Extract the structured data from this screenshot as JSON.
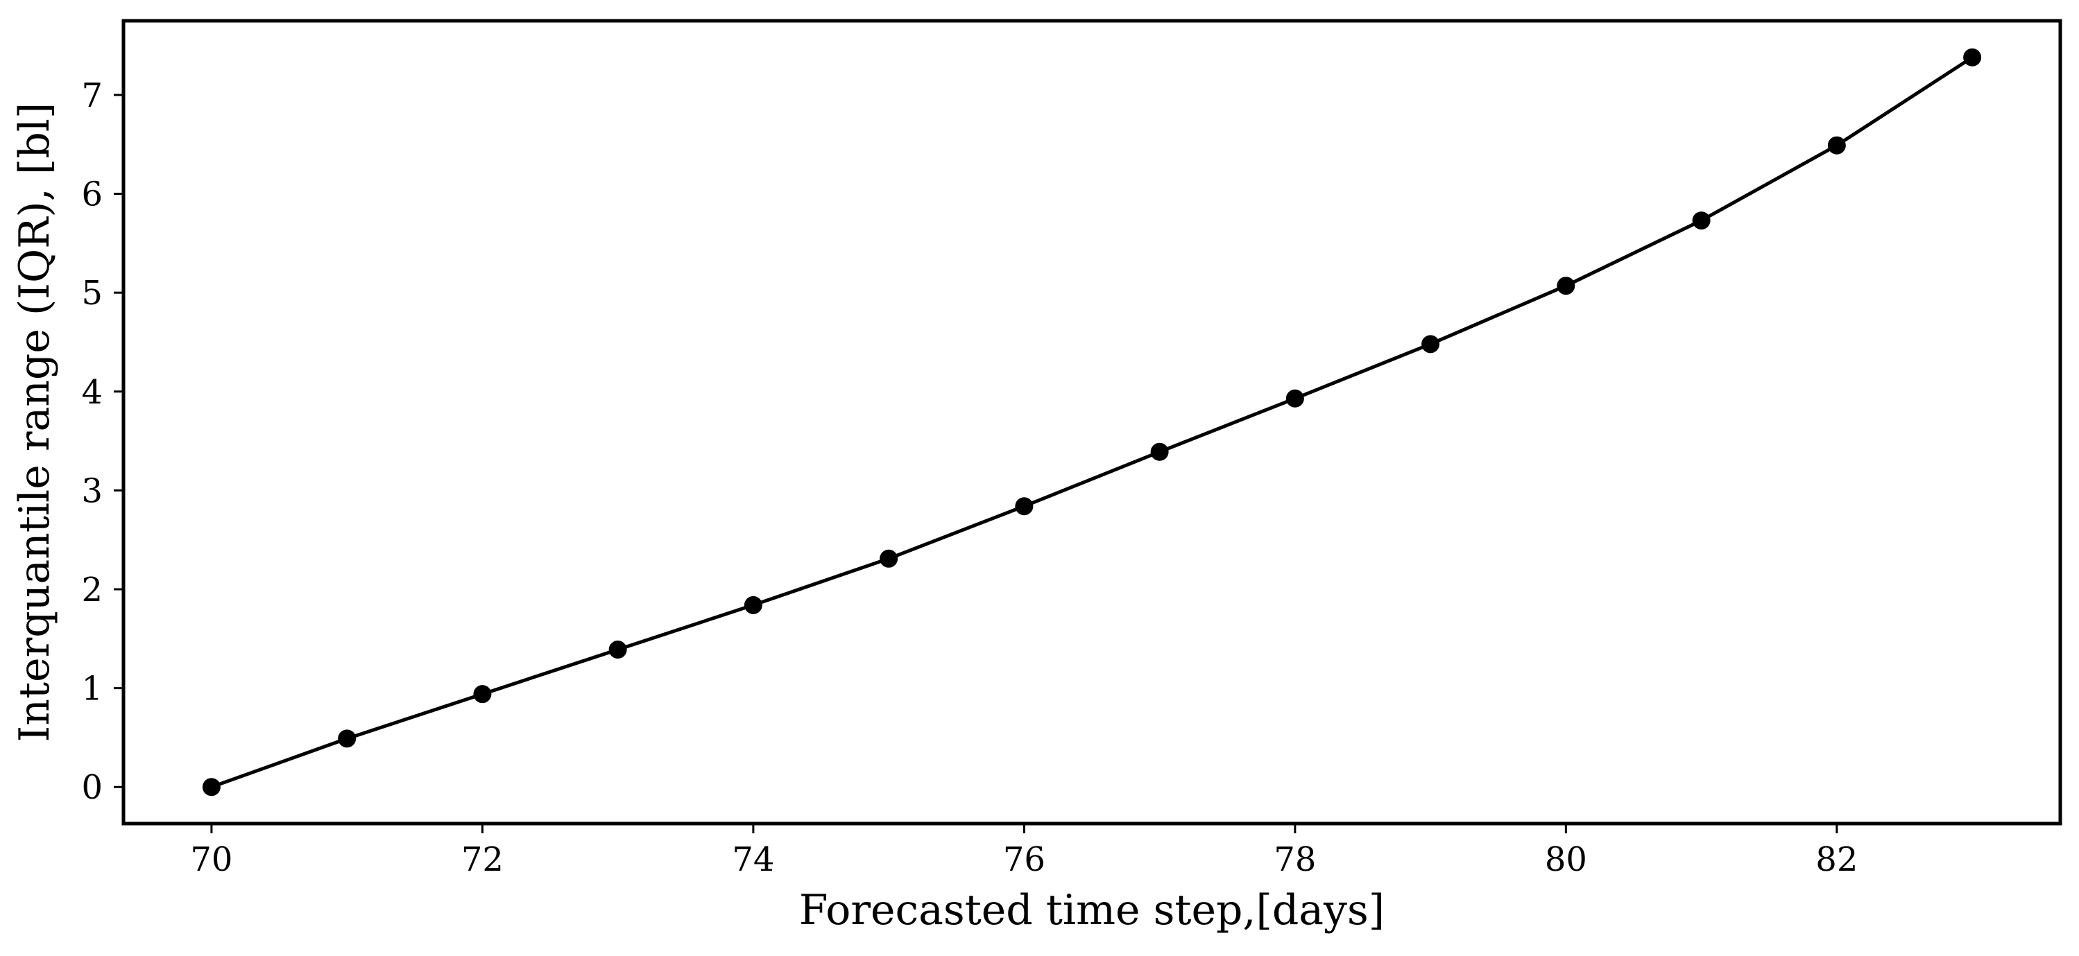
{
  "chart_data": {
    "type": "line",
    "title": "",
    "xlabel": "Forecasted time step,[days]",
    "ylabel": "Interquantile range (IQR), [bl]",
    "xlim": [
      69.35,
      83.65
    ],
    "ylim": [
      -0.37,
      7.75
    ],
    "xticks": [
      70,
      72,
      74,
      76,
      78,
      80,
      82
    ],
    "yticks": [
      0,
      1,
      2,
      3,
      4,
      5,
      6,
      7
    ],
    "grid": false,
    "legend": "none",
    "series": [
      {
        "color": "#000000",
        "marker": "circle",
        "x": [
          70,
          71,
          72,
          73,
          74,
          75,
          76,
          77,
          78,
          79,
          80,
          81,
          82,
          83
        ],
        "y": [
          0.0,
          0.49,
          0.94,
          1.39,
          1.84,
          2.31,
          2.84,
          3.39,
          3.93,
          4.48,
          5.07,
          5.73,
          6.49,
          7.38
        ]
      }
    ]
  }
}
